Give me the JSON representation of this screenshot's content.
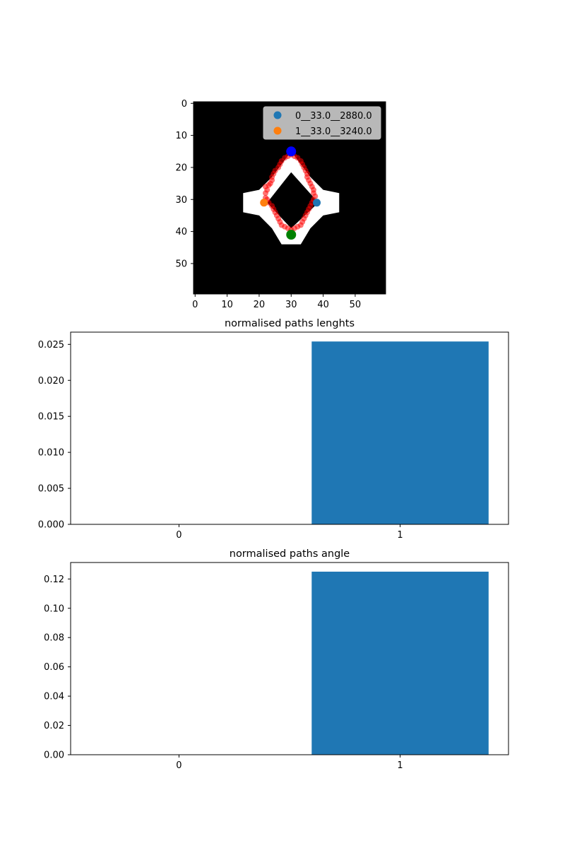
{
  "chart_data": [
    {
      "type": "scatter",
      "title": "",
      "xlabel": "",
      "ylabel": "",
      "xlim": [
        -0.5,
        59.5
      ],
      "ylim": [
        59.5,
        -0.5
      ],
      "xticks": [
        "0",
        "10",
        "20",
        "30",
        "40",
        "50"
      ],
      "yticks": [
        "0",
        "10",
        "20",
        "30",
        "40",
        "50"
      ],
      "background": "image of a white diamond-shaped ring mask on black",
      "legend_position": "top-right",
      "series": [
        {
          "name": "0__33.0__2880.0",
          "color": "#1f77b4",
          "points": [
            [
              38,
              31
            ]
          ]
        },
        {
          "name": "1__33.0__3240.0",
          "color": "#ff7f0e",
          "points": [
            [
              21.5,
              31
            ]
          ]
        }
      ],
      "markers": [
        {
          "color": "#0000ff",
          "point": [
            30,
            15
          ]
        },
        {
          "color": "#008000",
          "point": [
            30,
            41
          ]
        }
      ],
      "path_color": "#ff0000",
      "path_points": [
        [
          30,
          16
        ],
        [
          31,
          16.5
        ],
        [
          32,
          17
        ],
        [
          33,
          18
        ],
        [
          33.5,
          19
        ],
        [
          34,
          20
        ],
        [
          34.5,
          21
        ],
        [
          35,
          22
        ],
        [
          35,
          23
        ],
        [
          35.5,
          24
        ],
        [
          36,
          25
        ],
        [
          36.5,
          26
        ],
        [
          37,
          27
        ],
        [
          37,
          28
        ],
        [
          37.5,
          29
        ],
        [
          37,
          30
        ],
        [
          36.5,
          31
        ],
        [
          36,
          32
        ],
        [
          35.5,
          33
        ],
        [
          35,
          34
        ],
        [
          34.5,
          35
        ],
        [
          34,
          36
        ],
        [
          33.5,
          37
        ],
        [
          33,
          38
        ],
        [
          32,
          38.5
        ],
        [
          31,
          39
        ],
        [
          30,
          39.5
        ],
        [
          29,
          39
        ],
        [
          28,
          38.5
        ],
        [
          27,
          38
        ],
        [
          26.5,
          37
        ],
        [
          26,
          36
        ],
        [
          25.5,
          35
        ],
        [
          25,
          34
        ],
        [
          24.5,
          33
        ],
        [
          24,
          32
        ],
        [
          23,
          31
        ],
        [
          22.5,
          30
        ],
        [
          22,
          29.5
        ],
        [
          22,
          28
        ],
        [
          22.5,
          27
        ],
        [
          22,
          26
        ],
        [
          23,
          25.5
        ],
        [
          23.5,
          25
        ],
        [
          24,
          24
        ],
        [
          24,
          23
        ],
        [
          24.5,
          22
        ],
        [
          25,
          21
        ],
        [
          26,
          20
        ],
        [
          26.5,
          19
        ],
        [
          27,
          18
        ],
        [
          28,
          17
        ],
        [
          29,
          16.5
        ]
      ]
    },
    {
      "type": "bar",
      "title": "normalised paths lenghts",
      "categories": [
        "0",
        "1"
      ],
      "values": [
        0,
        0.0254
      ],
      "ylim": [
        0,
        0.0267
      ],
      "yticks": [
        "0.000",
        "0.005",
        "0.010",
        "0.015",
        "0.020",
        "0.025"
      ],
      "ytick_values": [
        0,
        0.005,
        0.01,
        0.015,
        0.02,
        0.025
      ],
      "color": "#1f77b4"
    },
    {
      "type": "bar",
      "title": "normalised paths angle",
      "categories": [
        "0",
        "1"
      ],
      "values": [
        0,
        0.125
      ],
      "ylim": [
        0,
        0.13125
      ],
      "yticks": [
        "0.00",
        "0.02",
        "0.04",
        "0.06",
        "0.08",
        "0.10",
        "0.12"
      ],
      "ytick_values": [
        0,
        0.02,
        0.04,
        0.06,
        0.08,
        0.1,
        0.12
      ],
      "color": "#1f77b4"
    }
  ]
}
